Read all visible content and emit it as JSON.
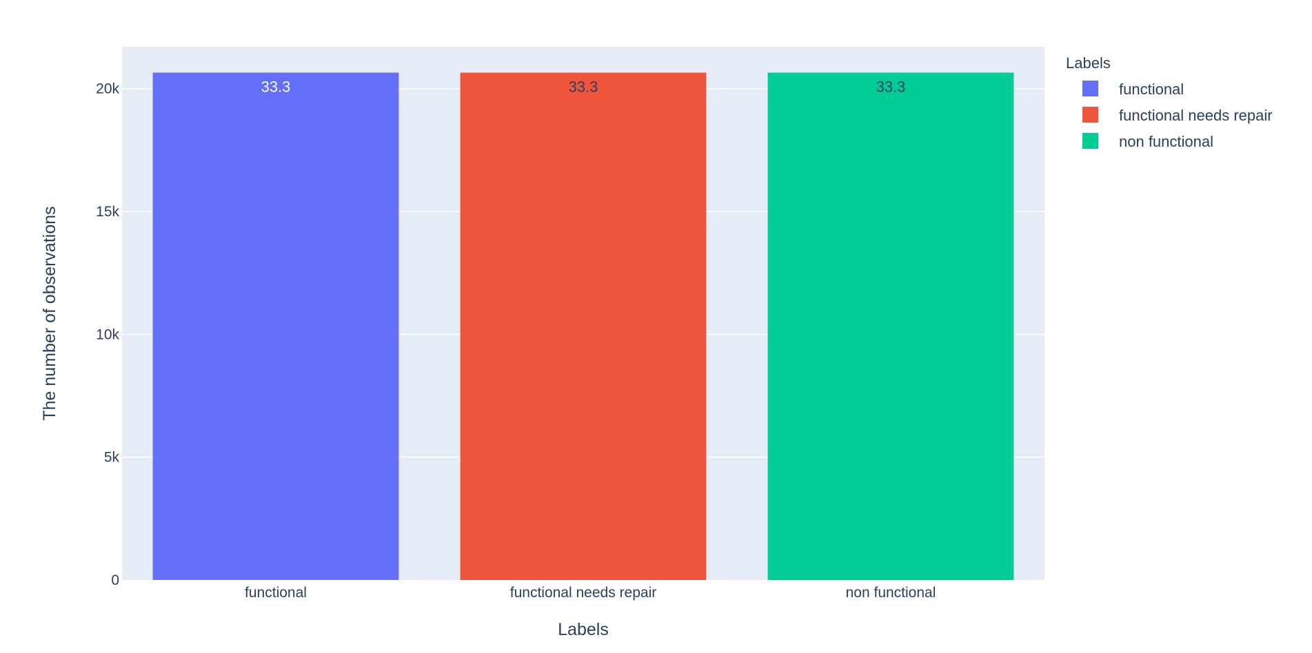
{
  "chart_data": {
    "type": "bar",
    "categories": [
      "functional",
      "functional needs repair",
      "non functional"
    ],
    "values": [
      20650,
      20650,
      20650
    ],
    "text_labels": [
      "33.3",
      "33.3",
      "33.3"
    ],
    "colors": [
      "#636efa",
      "#ef553b",
      "#00cc96"
    ],
    "label_colors": [
      "#ffffff",
      "#2a3f5f",
      "#2a3f5f"
    ],
    "xlabel": "Labels",
    "ylabel": "The number of observations",
    "ylim": [
      0,
      21700
    ],
    "yticks": [
      0,
      5000,
      10000,
      15000,
      20000
    ],
    "ytick_labels": [
      "0",
      "5k",
      "10k",
      "15k",
      "20k"
    ],
    "grid": true,
    "plot_background": "#e5ecf6",
    "legend": {
      "title": "Labels",
      "placement": "top-right",
      "entries": [
        "functional",
        "functional needs repair",
        "non functional"
      ]
    }
  }
}
